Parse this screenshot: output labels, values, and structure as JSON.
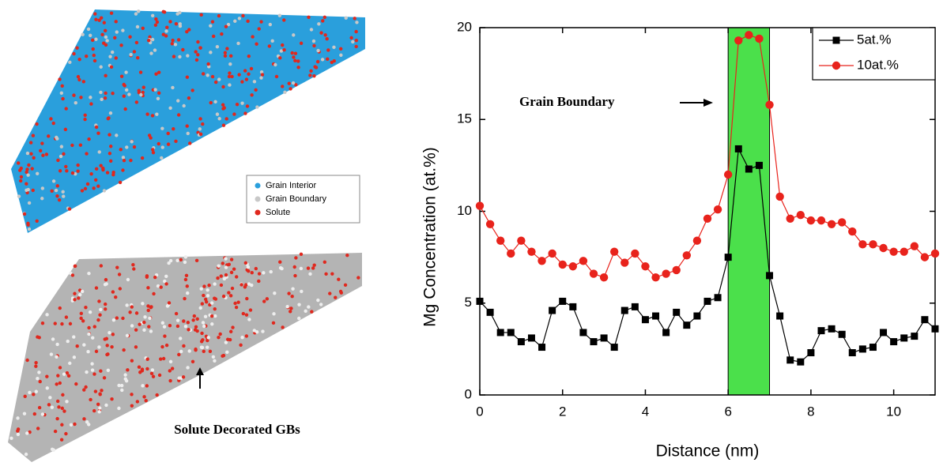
{
  "atomistic_panel": {
    "legend": [
      {
        "label": "Grain Interior",
        "color": "#2a9fdc"
      },
      {
        "label": "Grain Boundary",
        "color": "#c8c8c8"
      },
      {
        "label": "Solute",
        "color": "#e0281e"
      }
    ],
    "annotation": "Solute Decorated GBs"
  },
  "chart_data": {
    "type": "line",
    "xlabel": "Distance (nm)",
    "ylabel": "Mg Concentration (at.%)",
    "xlim": [
      0,
      11
    ],
    "xticks": [
      0,
      2,
      4,
      6,
      8,
      10
    ],
    "ylim": [
      0,
      20
    ],
    "yticks": [
      0,
      5,
      10,
      15,
      20
    ],
    "shaded_region": {
      "x": [
        6,
        7
      ],
      "color": "#4be04b"
    },
    "annotation": "Grain Boundary",
    "legend": "upper right",
    "x": [
      0,
      0.25,
      0.5,
      0.75,
      1,
      1.25,
      1.5,
      1.75,
      2,
      2.25,
      2.5,
      2.75,
      3,
      3.25,
      3.5,
      3.75,
      4,
      4.25,
      4.5,
      4.75,
      5,
      5.25,
      5.5,
      5.75,
      6,
      6.25,
      6.5,
      6.75,
      7,
      7.25,
      7.5,
      7.75,
      8,
      8.25,
      8.5,
      8.75,
      9,
      9.25,
      9.5,
      9.75,
      10,
      10.25,
      10.5,
      10.75,
      11
    ],
    "series": [
      {
        "name": "5at.%",
        "color": "#000000",
        "marker": "square",
        "values": [
          5.1,
          4.5,
          3.4,
          3.4,
          2.9,
          3.1,
          2.6,
          4.6,
          5.1,
          4.8,
          3.4,
          2.9,
          3.1,
          2.6,
          4.6,
          4.8,
          4.1,
          4.3,
          3.4,
          4.5,
          3.8,
          4.3,
          5.1,
          5.3,
          7.5,
          13.4,
          12.3,
          12.5,
          6.5,
          4.3,
          1.9,
          1.8,
          2.3,
          3.5,
          3.6,
          3.3,
          2.3,
          2.5,
          2.6,
          3.4,
          2.9,
          3.1,
          3.2,
          4.1,
          3.6
        ]
      },
      {
        "name": "10at.%",
        "color": "#e8231c",
        "marker": "circle",
        "values": [
          10.3,
          9.3,
          8.4,
          7.7,
          8.4,
          7.8,
          7.3,
          7.7,
          7.1,
          7.0,
          7.3,
          6.6,
          6.4,
          7.8,
          7.2,
          7.7,
          7.0,
          6.4,
          6.6,
          6.8,
          7.6,
          8.4,
          9.6,
          10.1,
          12.0,
          19.3,
          19.6,
          19.4,
          15.8,
          10.8,
          9.6,
          9.8,
          9.5,
          9.5,
          9.3,
          9.4,
          8.9,
          8.2,
          8.2,
          8.0,
          7.8,
          7.8,
          8.1,
          7.5,
          7.7
        ]
      }
    ]
  }
}
